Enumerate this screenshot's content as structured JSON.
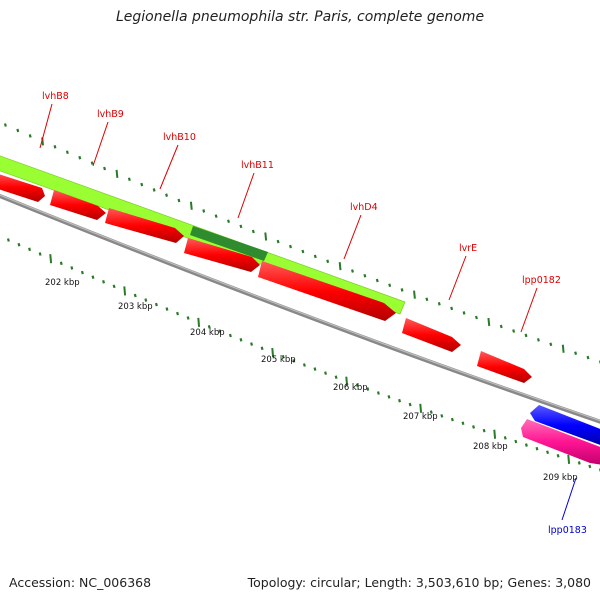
{
  "title": "Legionella pneumophila str. Paris, complete genome",
  "accession": "Accession: NC_006368",
  "summary": "Topology: circular; Length: 3,503,610 bp; Genes: 3,080",
  "colors": {
    "backbone": "#888888",
    "cds_reverse": "#ff0000",
    "cds_forward": "#0000ff",
    "operon": "#99ff33",
    "operon_highlight": "#2e8b2e",
    "pink_feature": "#ff1493",
    "tick": "#2a7a2a",
    "label_reverse": "#dd0000",
    "label_forward": "#0000cc"
  },
  "scale": {
    "labels": [
      "202 kbp",
      "203 kbp",
      "204 kbp",
      "205 kbp",
      "206 kbp",
      "207 kbp",
      "208 kbp",
      "209 kbp"
    ]
  },
  "genes": [
    {
      "label": "lvhB8",
      "strand": "reverse"
    },
    {
      "label": "lvhB9",
      "strand": "reverse"
    },
    {
      "label": "lvhB10",
      "strand": "reverse"
    },
    {
      "label": "lvhB11",
      "strand": "reverse"
    },
    {
      "label": "lvhD4",
      "strand": "reverse"
    },
    {
      "label": "lvrE",
      "strand": "reverse"
    },
    {
      "label": "lpp0182",
      "strand": "reverse"
    },
    {
      "label": "lpp0183",
      "strand": "forward"
    }
  ]
}
